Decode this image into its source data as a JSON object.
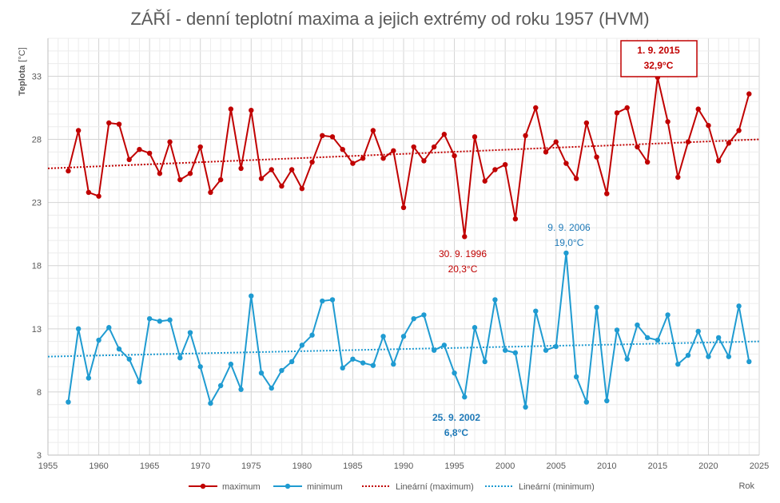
{
  "chart_data": {
    "type": "line",
    "title": "ZÁŘÍ - denní teplotní maxima a jejich extrémy od roku 1957 (HVM)",
    "ylabel": "Teplota",
    "yunit": "[°C]",
    "xlabel": "Rok",
    "xlim": [
      1955,
      2025
    ],
    "ylim": [
      3,
      36
    ],
    "xticks": [
      1955,
      1960,
      1965,
      1970,
      1975,
      1980,
      1985,
      1990,
      1995,
      2000,
      2005,
      2010,
      2015,
      2020,
      2025
    ],
    "yticks": [
      3,
      8,
      13,
      18,
      23,
      28,
      33
    ],
    "grid": true,
    "legend_position": "bottom",
    "series": [
      {
        "name": "maximum",
        "color": "#c00000",
        "x": [
          1957,
          1958,
          1959,
          1960,
          1961,
          1962,
          1963,
          1964,
          1965,
          1966,
          1967,
          1968,
          1969,
          1970,
          1971,
          1972,
          1973,
          1974,
          1975,
          1976,
          1977,
          1978,
          1979,
          1980,
          1981,
          1982,
          1983,
          1984,
          1985,
          1986,
          1987,
          1988,
          1989,
          1990,
          1991,
          1992,
          1993,
          1994,
          1995,
          1996,
          1997,
          1998,
          1999,
          2000,
          2001,
          2002,
          2003,
          2004,
          2005,
          2006,
          2007,
          2008,
          2009,
          2010,
          2011,
          2012,
          2013,
          2014,
          2015,
          2016,
          2017,
          2018,
          2019,
          2020,
          2021,
          2022,
          2023,
          2024
        ],
        "values": [
          25.5,
          28.7,
          23.8,
          23.5,
          29.3,
          29.2,
          26.4,
          27.2,
          26.9,
          25.3,
          27.8,
          24.8,
          25.3,
          27.4,
          23.8,
          24.8,
          30.4,
          25.7,
          30.3,
          24.9,
          25.6,
          24.3,
          25.6,
          24.1,
          26.2,
          28.3,
          28.2,
          27.2,
          26.1,
          26.5,
          28.7,
          26.5,
          27.1,
          22.6,
          27.4,
          26.3,
          27.4,
          28.4,
          26.7,
          20.3,
          28.2,
          24.7,
          25.6,
          26.0,
          21.7,
          28.3,
          30.5,
          27.0,
          27.8,
          26.1,
          24.9,
          29.3,
          26.6,
          23.7,
          30.1,
          30.5,
          27.4,
          26.2,
          32.9,
          29.4,
          25.0,
          27.8,
          30.4,
          29.1,
          26.3,
          27.7,
          28.7,
          31.6
        ]
      },
      {
        "name": "minimum",
        "color": "#1f9bd1",
        "x": [
          1957,
          1958,
          1959,
          1960,
          1961,
          1962,
          1963,
          1964,
          1965,
          1966,
          1967,
          1968,
          1969,
          1970,
          1971,
          1972,
          1973,
          1974,
          1975,
          1976,
          1977,
          1978,
          1979,
          1980,
          1981,
          1982,
          1983,
          1984,
          1985,
          1986,
          1987,
          1988,
          1989,
          1990,
          1991,
          1992,
          1993,
          1994,
          1995,
          1996,
          1997,
          1998,
          1999,
          2000,
          2001,
          2002,
          2003,
          2004,
          2005,
          2006,
          2007,
          2008,
          2009,
          2010,
          2011,
          2012,
          2013,
          2014,
          2015,
          2016,
          2017,
          2018,
          2019,
          2020,
          2021,
          2022,
          2023,
          2024
        ],
        "values": [
          7.2,
          13.0,
          9.1,
          12.1,
          13.1,
          11.4,
          10.6,
          8.8,
          13.8,
          13.6,
          13.7,
          10.7,
          12.7,
          10.0,
          7.1,
          8.5,
          10.2,
          8.2,
          15.6,
          9.5,
          8.3,
          9.7,
          10.4,
          11.7,
          12.5,
          15.2,
          15.3,
          9.9,
          10.6,
          10.3,
          10.1,
          12.4,
          10.2,
          12.4,
          13.8,
          14.1,
          11.3,
          11.7,
          9.5,
          7.6,
          13.1,
          10.4,
          15.3,
          11.3,
          11.1,
          6.8,
          14.4,
          11.3,
          11.6,
          19.0,
          9.2,
          7.2,
          14.7,
          7.3,
          12.9,
          10.6,
          13.3,
          12.3,
          12.1,
          14.1,
          10.2,
          10.9,
          12.8,
          10.8,
          12.3,
          10.8,
          14.8,
          10.4
        ]
      },
      {
        "name": "Lineární (maximum)",
        "color": "#c00000",
        "style": "dotted",
        "x": [
          1955,
          2025
        ],
        "values": [
          25.7,
          28.0
        ]
      },
      {
        "name": "Lineární (minimum)",
        "color": "#1f9bd1",
        "style": "dotted",
        "x": [
          1955,
          2025
        ],
        "values": [
          10.8,
          12.0
        ]
      }
    ],
    "annotations": [
      {
        "id": "max-high",
        "line1": "1. 9. 2015",
        "line2": "32,9°C",
        "color": "#c00000",
        "bold": true,
        "boxed": true
      },
      {
        "id": "max-low",
        "line1": "30. 9. 1996",
        "line2": "20,3°C",
        "color": "#c00000",
        "bold": false,
        "boxed": false
      },
      {
        "id": "min-high",
        "line1": "9. 9. 2006",
        "line2": "19,0°C",
        "color": "#1f7ab8",
        "bold": false,
        "boxed": false
      },
      {
        "id": "min-low",
        "line1": "25. 9. 2002",
        "line2": "6,8°C",
        "color": "#1f7ab8",
        "bold": true,
        "boxed": false
      }
    ]
  }
}
